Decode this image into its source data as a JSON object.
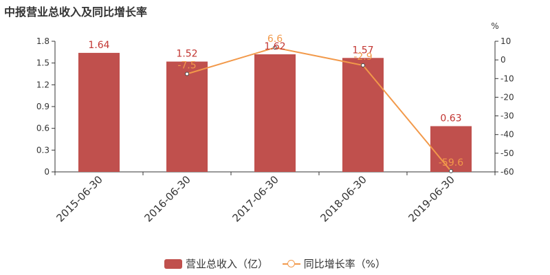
{
  "title": "中报营业总收入及同比增长率",
  "colors": {
    "bar": "#c0504d",
    "line": "#f2994a",
    "bar_label": "#c23531",
    "axis": "#333333"
  },
  "chart_data": {
    "type": "bar",
    "categories": [
      "2015-06-30",
      "2016-06-30",
      "2017-06-30",
      "2018-06-30",
      "2019-06-30"
    ],
    "series": [
      {
        "name": "营业总收入（亿）",
        "type": "bar",
        "axis": "left",
        "values": [
          1.64,
          1.52,
          1.62,
          1.57,
          0.63
        ]
      },
      {
        "name": "同比增长率（%）",
        "type": "line",
        "axis": "right",
        "values": [
          null,
          -7.5,
          6.6,
          -2.9,
          -59.6
        ]
      }
    ],
    "y_left": {
      "min": 0,
      "max": 1.8,
      "ticks": [
        "0",
        "0.3",
        "0.6",
        "0.9",
        "1.2",
        "1.5",
        "1.8"
      ]
    },
    "y_right": {
      "min": -60,
      "max": 10,
      "unit": "%",
      "ticks": [
        "-60",
        "-50",
        "-40",
        "-30",
        "-20",
        "-10",
        "0",
        "10"
      ]
    },
    "bar_labels": [
      "1.64",
      "1.52",
      "1.62",
      "1.57",
      "0.63"
    ],
    "line_labels": [
      "",
      "-7.5",
      "6.6",
      "-2.9",
      "-59.6"
    ],
    "legend_position": "bottom-center",
    "grid": false
  }
}
